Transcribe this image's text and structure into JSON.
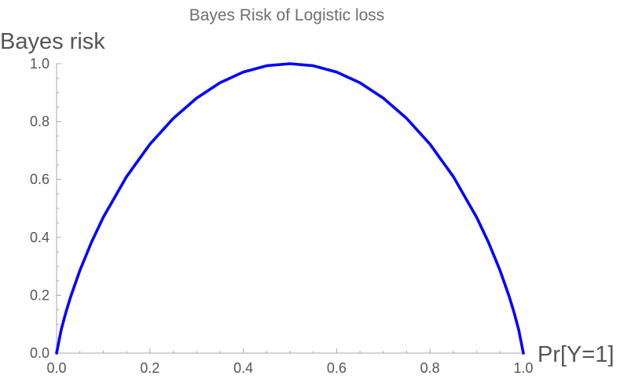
{
  "chart_data": {
    "type": "line",
    "title": "Bayes Risk of Logistic loss",
    "xlabel": "Pr[Y=1]",
    "ylabel": "Bayes risk",
    "xlim": [
      0,
      1
    ],
    "ylim": [
      0,
      1
    ],
    "x_ticks": [
      "0.0",
      "0.2",
      "0.4",
      "0.6",
      "0.8",
      "1.0"
    ],
    "y_ticks": [
      "0.0",
      "0.2",
      "0.4",
      "0.6",
      "0.8",
      "1.0"
    ],
    "grid": false,
    "legend": "none",
    "series": [
      {
        "color": "#0000ff",
        "x": [
          0.0,
          0.01,
          0.02,
          0.03,
          0.05,
          0.075,
          0.1,
          0.15,
          0.2,
          0.25,
          0.3,
          0.35,
          0.4,
          0.45,
          0.5,
          0.55,
          0.6,
          0.65,
          0.7,
          0.75,
          0.8,
          0.85,
          0.9,
          0.925,
          0.95,
          0.97,
          0.98,
          0.99,
          1.0
        ],
        "y": [
          0.0,
          0.081,
          0.141,
          0.194,
          0.286,
          0.384,
          0.469,
          0.61,
          0.722,
          0.811,
          0.881,
          0.934,
          0.971,
          0.993,
          1.0,
          0.993,
          0.971,
          0.934,
          0.881,
          0.811,
          0.722,
          0.61,
          0.469,
          0.384,
          0.286,
          0.194,
          0.141,
          0.081,
          0.0
        ]
      }
    ]
  }
}
